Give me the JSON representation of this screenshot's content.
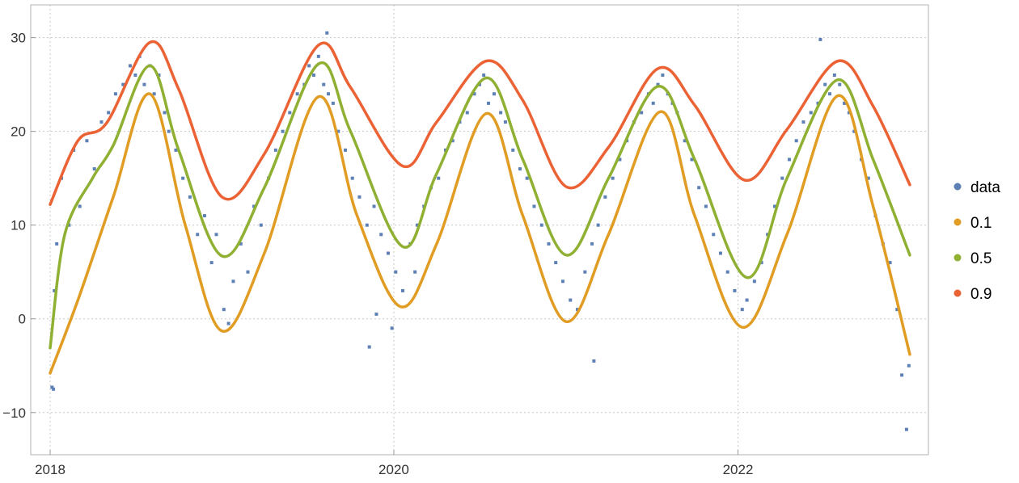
{
  "chart_data": {
    "type": "scatter",
    "title": "",
    "xlabel": "",
    "ylabel": "",
    "x_axis_type": "date",
    "xlim": [
      "2018-01-01",
      "2023-01-01"
    ],
    "ylim": [
      -14.5,
      33.5
    ],
    "x_ticks": [
      "2018",
      "2020",
      "2022"
    ],
    "y_ticks": [
      -10,
      0,
      10,
      20,
      30
    ],
    "y_tick_labels": [
      "−10",
      "0",
      "10",
      "20",
      "30"
    ],
    "grid": true,
    "grid_style": "dotted",
    "legend_position": "right",
    "legend": [
      "data",
      "0.1",
      "0.5",
      "0.9"
    ],
    "colors": {
      "data": "#5E81B5",
      "0.1": "#E19C24",
      "0.5": "#8FB032",
      "0.9": "#EB6235",
      "frame": "#b3b3b3",
      "grid": "#c8c8c8"
    },
    "series": [
      {
        "name": "0.9",
        "type": "line",
        "x": [
          "2018-01-01",
          "2018-03-01",
          "2018-05-01",
          "2018-08-01",
          "2018-10-01",
          "2019-01-01",
          "2019-04-01",
          "2019-07-25",
          "2019-10-01",
          "2020-01-20",
          "2020-04-01",
          "2020-07-15",
          "2020-10-01",
          "2021-01-01",
          "2021-04-01",
          "2021-07-15",
          "2021-10-01",
          "2022-01-15",
          "2022-04-15",
          "2022-08-01",
          "2022-10-15",
          "2023-01-01"
        ],
        "y": [
          12.2,
          19.0,
          20.9,
          29.5,
          24.5,
          13.0,
          17.6,
          29.2,
          24.7,
          16.3,
          21.0,
          27.5,
          23.3,
          14.1,
          18.3,
          26.7,
          22.8,
          14.8,
          20.2,
          27.5,
          22.7,
          14.3
        ]
      },
      {
        "name": "0.5",
        "type": "line",
        "x": [
          "2018-01-01",
          "2018-02-01",
          "2018-04-01",
          "2018-05-15",
          "2018-08-01",
          "2018-10-01",
          "2019-01-01",
          "2019-04-01",
          "2019-07-25",
          "2019-10-01",
          "2020-01-20",
          "2020-04-01",
          "2020-07-15",
          "2020-10-01",
          "2021-01-01",
          "2021-04-01",
          "2021-07-15",
          "2021-10-01",
          "2022-01-20",
          "2022-04-15",
          "2022-08-01",
          "2022-10-15",
          "2023-01-01"
        ],
        "y": [
          -3.1,
          9.0,
          15.0,
          18.5,
          27.0,
          18.0,
          6.7,
          14.0,
          27.2,
          20.0,
          7.7,
          15.5,
          25.7,
          17.0,
          6.8,
          15.0,
          24.8,
          17.0,
          4.4,
          15.0,
          25.5,
          17.0,
          6.8
        ]
      },
      {
        "name": "0.1",
        "type": "line",
        "x": [
          "2018-01-01",
          "2018-03-01",
          "2018-05-15",
          "2018-08-01",
          "2018-10-15",
          "2019-01-01",
          "2019-04-01",
          "2019-07-25",
          "2019-10-15",
          "2020-01-15",
          "2020-04-01",
          "2020-07-15",
          "2020-10-01",
          "2021-01-01",
          "2021-04-01",
          "2021-07-20",
          "2021-10-01",
          "2022-01-10",
          "2022-04-15",
          "2022-08-01",
          "2022-10-15",
          "2023-01-01"
        ],
        "y": [
          -5.8,
          2.0,
          13.0,
          24.0,
          10.0,
          -1.3,
          7.0,
          23.7,
          11.0,
          1.3,
          8.0,
          21.9,
          11.0,
          -0.3,
          9.0,
          22.1,
          11.0,
          -0.9,
          9.0,
          23.8,
          12.0,
          -3.8
        ]
      },
      {
        "name": "data",
        "type": "scatter",
        "x": [
          "2018-01-05",
          "2018-01-10",
          "2018-01-15",
          "2018-01-25",
          "2018-02-10",
          "2018-02-20",
          "2018-03-05",
          "2018-03-20",
          "2018-04-05",
          "2018-04-20",
          "2018-05-05",
          "2018-05-20",
          "2018-06-05",
          "2018-06-20",
          "2018-07-01",
          "2018-07-10",
          "2018-07-20",
          "2018-08-01",
          "2018-08-10",
          "2018-08-20",
          "2018-09-01",
          "2018-09-10",
          "2018-09-25",
          "2018-10-10",
          "2018-10-25",
          "2018-11-10",
          "2018-11-25",
          "2018-12-10",
          "2018-12-20",
          "2019-01-05",
          "2019-01-15",
          "2019-01-25",
          "2019-02-10",
          "2019-02-25",
          "2019-03-10",
          "2019-03-25",
          "2019-04-10",
          "2019-04-25",
          "2019-05-10",
          "2019-05-25",
          "2019-06-10",
          "2019-06-25",
          "2019-07-05",
          "2019-07-15",
          "2019-07-25",
          "2019-08-05",
          "2019-08-15",
          "2019-08-25",
          "2019-09-05",
          "2019-09-20",
          "2019-10-05",
          "2019-10-20",
          "2019-11-05",
          "2019-11-20",
          "2019-12-05",
          "2019-12-20",
          "2020-01-05",
          "2020-01-20",
          "2020-02-05",
          "2020-02-20",
          "2020-03-05",
          "2020-03-20",
          "2020-04-05",
          "2020-04-20",
          "2020-05-05",
          "2020-05-20",
          "2020-06-05",
          "2020-06-20",
          "2020-07-01",
          "2020-07-10",
          "2020-07-20",
          "2020-08-01",
          "2020-08-15",
          "2020-08-25",
          "2020-09-10",
          "2020-09-25",
          "2020-10-10",
          "2020-10-25",
          "2020-11-10",
          "2020-11-25",
          "2020-12-10",
          "2020-12-25",
          "2021-01-10",
          "2021-01-25",
          "2021-02-10",
          "2021-02-25",
          "2021-03-10",
          "2021-03-25",
          "2021-04-10",
          "2021-04-25",
          "2021-05-10",
          "2021-05-25",
          "2021-06-10",
          "2021-06-25",
          "2021-07-05",
          "2021-07-15",
          "2021-07-25",
          "2021-08-05",
          "2021-08-15",
          "2021-08-25",
          "2021-09-10",
          "2021-09-25",
          "2021-10-10",
          "2021-10-25",
          "2021-11-10",
          "2021-11-25",
          "2021-12-10",
          "2021-12-25",
          "2022-01-10",
          "2022-01-20",
          "2022-02-05",
          "2022-02-20",
          "2022-03-05",
          "2022-03-20",
          "2022-04-05",
          "2022-04-20",
          "2022-05-05",
          "2022-05-20",
          "2022-06-05",
          "2022-06-20",
          "2022-07-05",
          "2022-07-15",
          "2022-07-25",
          "2022-08-05",
          "2022-08-15",
          "2022-08-25",
          "2022-09-05",
          "2022-09-20",
          "2022-10-05",
          "2022-10-20",
          "2022-11-05",
          "2022-11-20",
          "2022-12-05",
          "2022-12-15",
          "2022-12-25",
          "2019-11-10",
          "2019-11-25",
          "2019-12-28",
          "2020-02-15",
          "2018-01-08",
          "2021-03-01",
          "2022-12-30",
          "2022-06-25",
          "2019-08-12"
        ],
        "y": [
          -7.3,
          3.0,
          8.0,
          15.0,
          10.0,
          18.0,
          12.0,
          19.0,
          16.0,
          21.0,
          22.0,
          24.0,
          25.0,
          27.0,
          26.0,
          28.0,
          25.0,
          27.0,
          24.0,
          26.0,
          22.0,
          20.0,
          18.0,
          15.0,
          13.0,
          9.0,
          11.0,
          6.0,
          9.0,
          1.0,
          -0.5,
          4.0,
          8.0,
          5.0,
          12.0,
          10.0,
          15.0,
          18.0,
          20.0,
          22.0,
          24.0,
          25.0,
          27.0,
          26.0,
          28.0,
          25.0,
          24.0,
          23.0,
          20.0,
          18.0,
          15.0,
          13.0,
          10.0,
          12.0,
          9.0,
          7.0,
          5.0,
          3.0,
          8.0,
          10.0,
          12.0,
          14.0,
          15.0,
          18.0,
          19.0,
          21.0,
          22.0,
          24.0,
          25.0,
          26.0,
          23.0,
          24.0,
          22.0,
          21.0,
          18.0,
          16.0,
          15.0,
          12.0,
          10.0,
          8.0,
          6.0,
          4.0,
          2.0,
          1.0,
          5.0,
          8.0,
          10.0,
          13.0,
          15.0,
          17.0,
          19.0,
          21.0,
          22.0,
          24.0,
          23.0,
          25.0,
          26.0,
          24.0,
          23.0,
          22.0,
          19.0,
          17.0,
          14.0,
          12.0,
          9.0,
          7.0,
          5.0,
          3.0,
          1.0,
          2.0,
          4.0,
          6.0,
          9.0,
          12.0,
          15.0,
          17.0,
          19.0,
          21.0,
          22.0,
          23.0,
          25.0,
          24.0,
          26.0,
          25.0,
          23.0,
          22.0,
          20.0,
          17.0,
          15.0,
          11.0,
          8.0,
          6.0,
          1.0,
          -6.0,
          -11.8,
          -3.0,
          0.5,
          -1.0,
          5.0,
          -7.5,
          -4.5,
          -5.0,
          29.8,
          30.5
        ]
      }
    ]
  }
}
